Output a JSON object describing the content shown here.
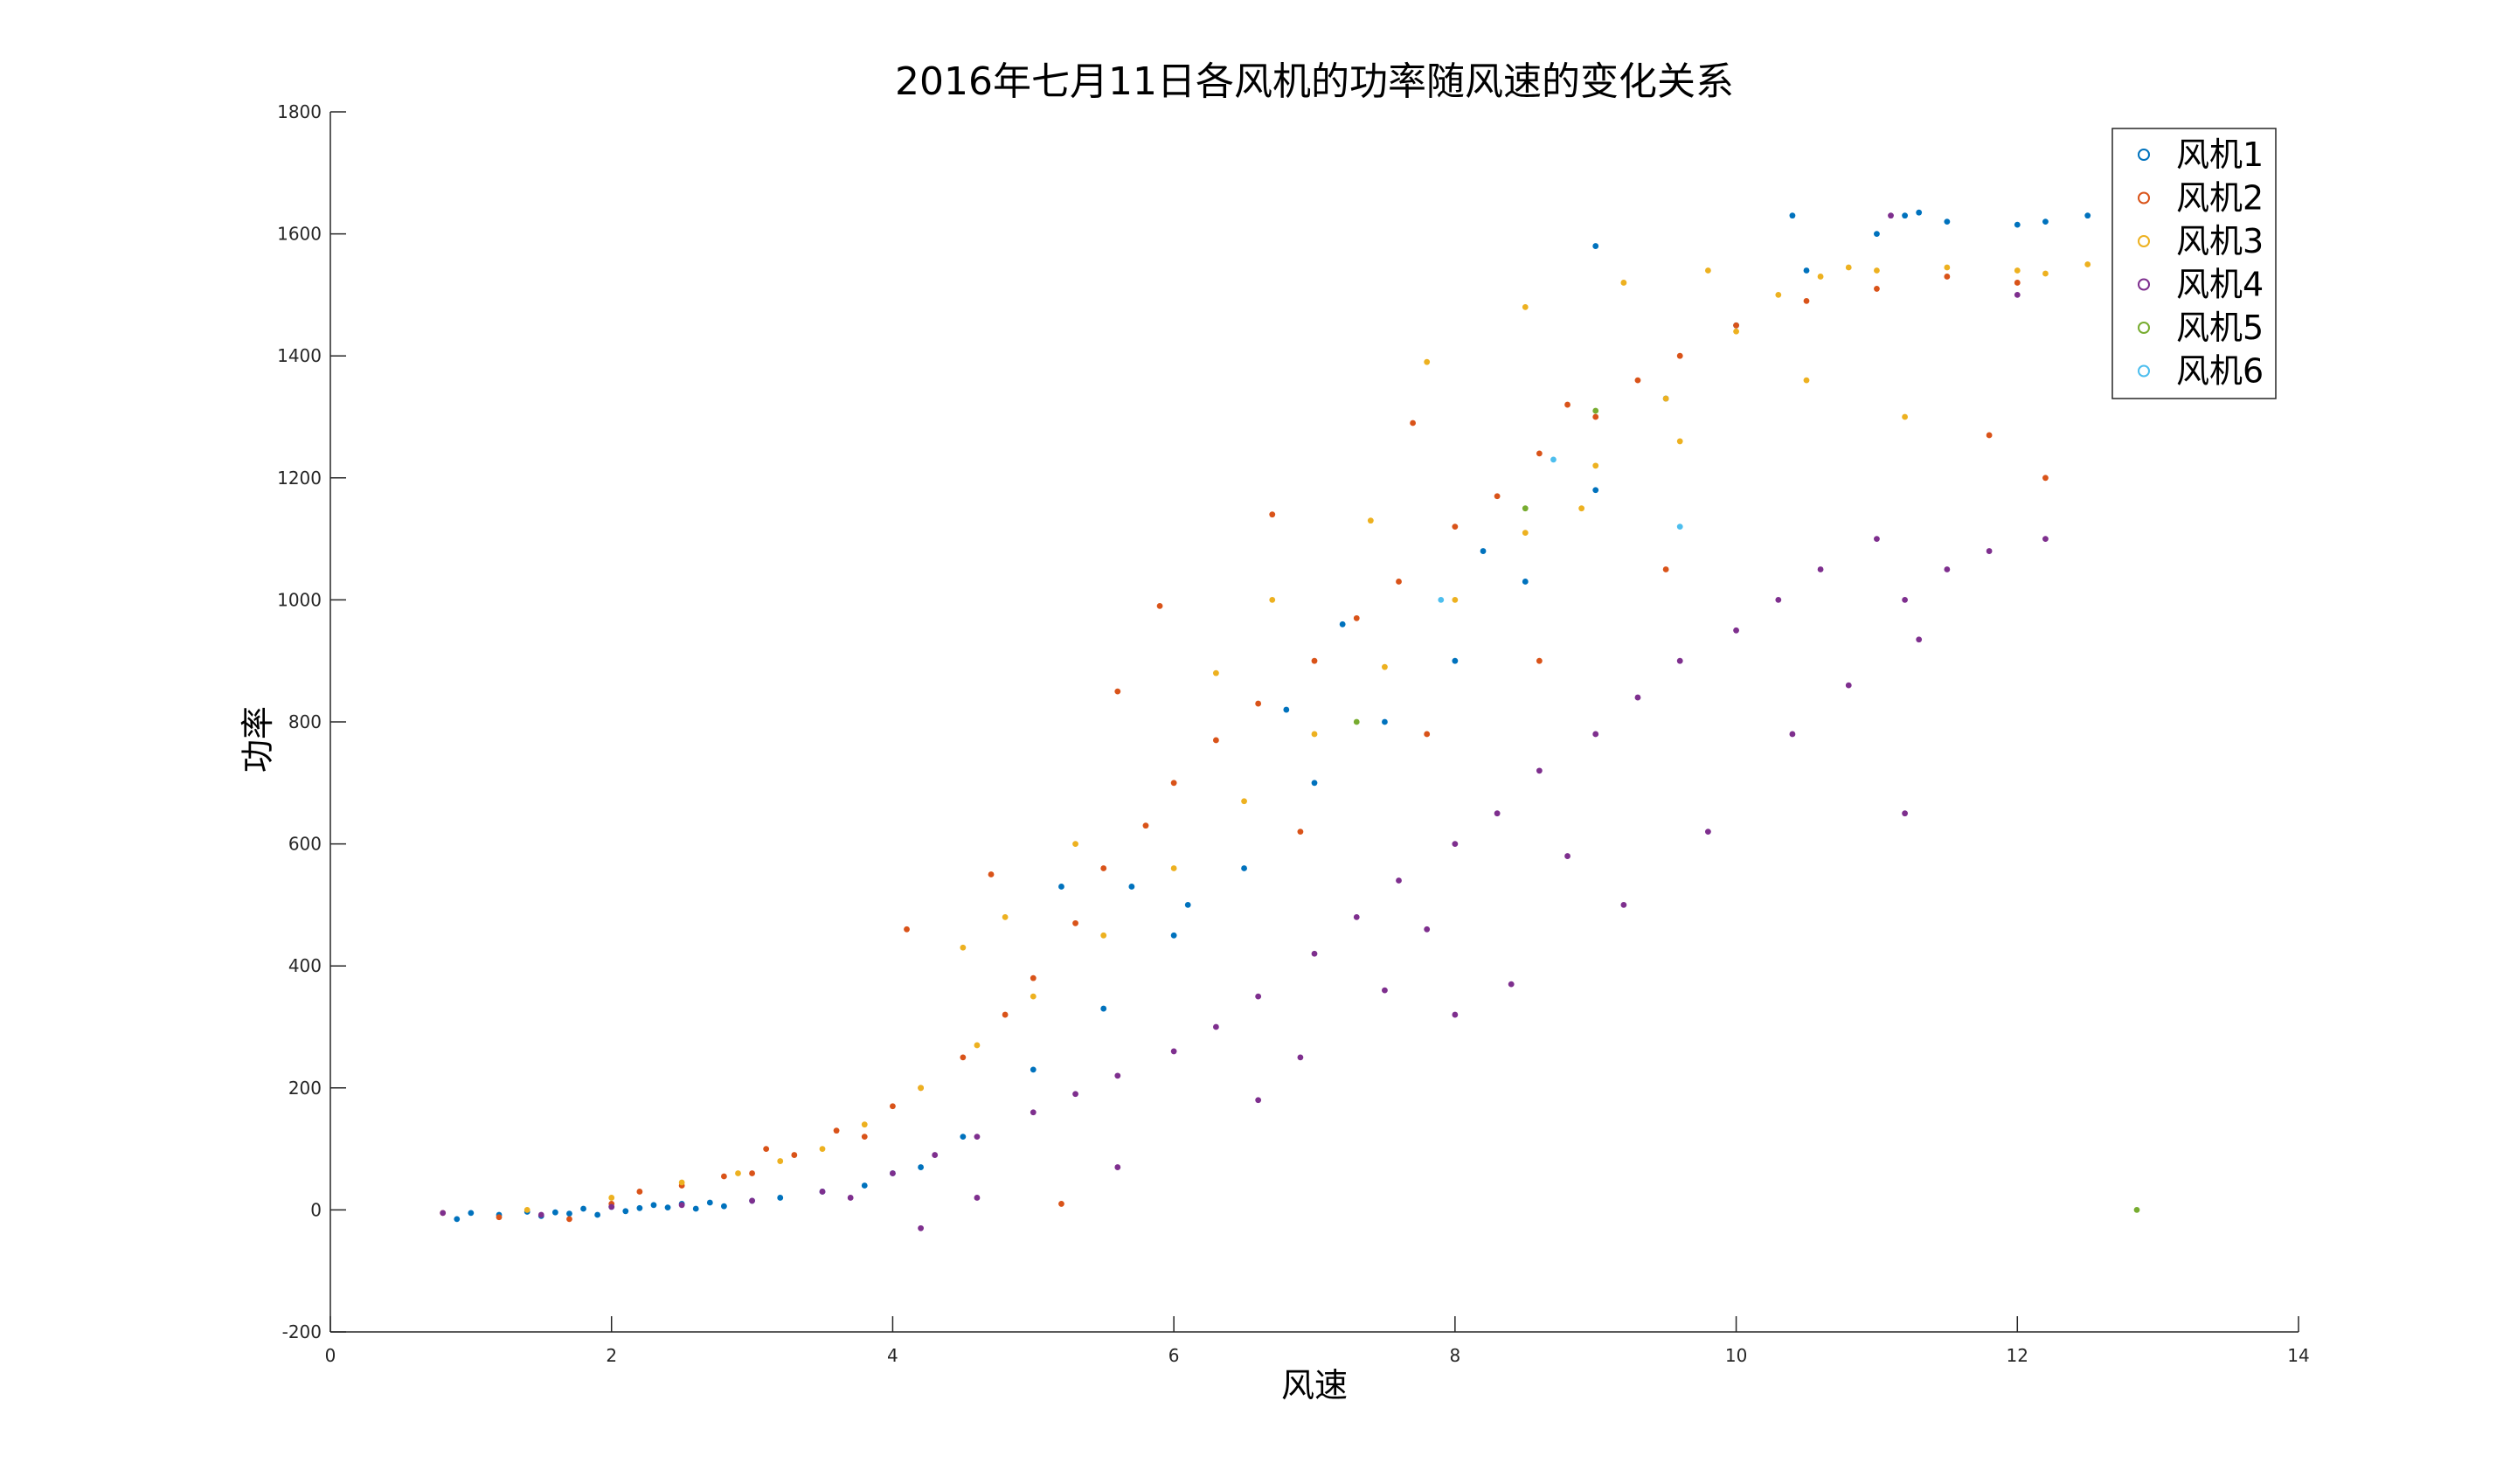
{
  "chart_data": {
    "type": "scatter",
    "title": "2016年七月11日各风机的功率随风速的变化关系",
    "xlabel": "风速",
    "ylabel": "功率",
    "xlim": [
      0,
      14
    ],
    "ylim": [
      -200,
      1800
    ],
    "xticks": [
      0,
      2,
      4,
      6,
      8,
      10,
      12,
      14
    ],
    "yticks": [
      -200,
      0,
      200,
      400,
      600,
      800,
      1000,
      1200,
      1400,
      1600,
      1800
    ],
    "grid": false,
    "legend_position": "top-right",
    "series": [
      {
        "name": "风机1",
        "color": "#0072BD",
        "points": [
          [
            0.9,
            -15
          ],
          [
            1.0,
            -5
          ],
          [
            1.2,
            -8
          ],
          [
            1.4,
            -3
          ],
          [
            1.5,
            -10
          ],
          [
            1.6,
            -4
          ],
          [
            1.7,
            -6
          ],
          [
            1.8,
            2
          ],
          [
            1.9,
            -8
          ],
          [
            2.0,
            5
          ],
          [
            2.1,
            -2
          ],
          [
            2.2,
            3
          ],
          [
            2.3,
            8
          ],
          [
            2.4,
            4
          ],
          [
            2.5,
            10
          ],
          [
            2.6,
            2
          ],
          [
            2.7,
            12
          ],
          [
            2.8,
            6
          ],
          [
            3.0,
            15
          ],
          [
            3.2,
            20
          ],
          [
            3.5,
            30
          ],
          [
            4.0,
            60
          ],
          [
            4.5,
            120
          ],
          [
            5.0,
            230
          ],
          [
            5.5,
            330
          ],
          [
            6.0,
            450
          ],
          [
            6.5,
            560
          ],
          [
            7.0,
            700
          ],
          [
            7.5,
            800
          ],
          [
            8.0,
            900
          ],
          [
            8.5,
            1030
          ],
          [
            9.0,
            1180
          ],
          [
            9.5,
            1330
          ],
          [
            10.0,
            1450
          ],
          [
            10.5,
            1540
          ],
          [
            11.0,
            1600
          ],
          [
            11.2,
            1630
          ],
          [
            11.5,
            1620
          ],
          [
            12.0,
            1615
          ],
          [
            12.5,
            1630
          ],
          [
            9.0,
            1580
          ],
          [
            10.4,
            1630
          ],
          [
            11.3,
            1635
          ],
          [
            12.2,
            1620
          ],
          [
            13.0,
            1610
          ],
          [
            8.2,
            1080
          ],
          [
            7.2,
            960
          ],
          [
            6.8,
            820
          ],
          [
            5.2,
            530
          ],
          [
            5.7,
            530
          ],
          [
            6.1,
            500
          ],
          [
            3.8,
            40
          ],
          [
            4.2,
            70
          ]
        ]
      },
      {
        "name": "风机2",
        "color": "#D95319",
        "points": [
          [
            0.8,
            -5
          ],
          [
            1.2,
            -12
          ],
          [
            1.7,
            -15
          ],
          [
            2.0,
            10
          ],
          [
            2.2,
            30
          ],
          [
            2.5,
            40
          ],
          [
            3.0,
            60
          ],
          [
            3.3,
            90
          ],
          [
            3.6,
            130
          ],
          [
            4.0,
            170
          ],
          [
            4.2,
            200
          ],
          [
            4.5,
            250
          ],
          [
            4.8,
            320
          ],
          [
            5.0,
            380
          ],
          [
            5.3,
            470
          ],
          [
            5.5,
            560
          ],
          [
            5.8,
            630
          ],
          [
            6.0,
            700
          ],
          [
            6.3,
            770
          ],
          [
            6.6,
            830
          ],
          [
            7.0,
            900
          ],
          [
            7.3,
            970
          ],
          [
            7.6,
            1030
          ],
          [
            8.0,
            1120
          ],
          [
            8.3,
            1170
          ],
          [
            8.6,
            1240
          ],
          [
            9.0,
            1300
          ],
          [
            9.3,
            1360
          ],
          [
            9.6,
            1400
          ],
          [
            10.0,
            1450
          ],
          [
            10.5,
            1490
          ],
          [
            11.0,
            1510
          ],
          [
            11.5,
            1530
          ],
          [
            12.0,
            1520
          ],
          [
            12.2,
            1200
          ],
          [
            11.8,
            1270
          ],
          [
            12.8,
            1500
          ],
          [
            5.6,
            850
          ],
          [
            5.9,
            990
          ],
          [
            4.7,
            550
          ],
          [
            4.1,
            460
          ],
          [
            6.7,
            1140
          ],
          [
            7.7,
            1290
          ],
          [
            8.8,
            1320
          ],
          [
            3.1,
            100
          ],
          [
            2.8,
            55
          ],
          [
            5.2,
            10
          ],
          [
            3.8,
            120
          ],
          [
            6.9,
            620
          ],
          [
            7.8,
            780
          ],
          [
            8.6,
            900
          ],
          [
            9.5,
            1050
          ]
        ]
      },
      {
        "name": "风机3",
        "color": "#EDB120",
        "points": [
          [
            1.4,
            0
          ],
          [
            2.0,
            20
          ],
          [
            2.5,
            45
          ],
          [
            2.9,
            60
          ],
          [
            3.2,
            80
          ],
          [
            3.5,
            100
          ],
          [
            3.8,
            140
          ],
          [
            4.2,
            200
          ],
          [
            4.6,
            270
          ],
          [
            5.0,
            350
          ],
          [
            5.5,
            450
          ],
          [
            6.0,
            560
          ],
          [
            6.5,
            670
          ],
          [
            7.0,
            780
          ],
          [
            7.5,
            890
          ],
          [
            8.0,
            1000
          ],
          [
            8.5,
            1110
          ],
          [
            9.0,
            1220
          ],
          [
            9.5,
            1330
          ],
          [
            10.0,
            1440
          ],
          [
            10.3,
            1500
          ],
          [
            10.6,
            1530
          ],
          [
            11.0,
            1540
          ],
          [
            11.5,
            1545
          ],
          [
            12.0,
            1540
          ],
          [
            12.5,
            1550
          ],
          [
            13.0,
            1550
          ],
          [
            13.3,
            1545
          ],
          [
            9.2,
            1520
          ],
          [
            9.8,
            1540
          ],
          [
            10.8,
            1545
          ],
          [
            12.2,
            1535
          ],
          [
            7.8,
            1390
          ],
          [
            8.5,
            1480
          ],
          [
            6.7,
            1000
          ],
          [
            5.3,
            600
          ],
          [
            4.5,
            430
          ],
          [
            8.9,
            1150
          ],
          [
            9.6,
            1260
          ],
          [
            10.5,
            1360
          ],
          [
            11.2,
            1300
          ],
          [
            7.4,
            1130
          ],
          [
            6.3,
            880
          ],
          [
            4.8,
            480
          ]
        ]
      },
      {
        "name": "风机4",
        "color": "#7E2F8E",
        "points": [
          [
            0.8,
            -5
          ],
          [
            1.5,
            -8
          ],
          [
            2.0,
            5
          ],
          [
            2.5,
            8
          ],
          [
            3.0,
            15
          ],
          [
            3.5,
            30
          ],
          [
            4.0,
            60
          ],
          [
            4.3,
            90
          ],
          [
            4.6,
            120
          ],
          [
            5.0,
            160
          ],
          [
            5.3,
            190
          ],
          [
            5.6,
            220
          ],
          [
            6.0,
            260
          ],
          [
            6.3,
            300
          ],
          [
            6.6,
            350
          ],
          [
            7.0,
            420
          ],
          [
            7.3,
            480
          ],
          [
            7.6,
            540
          ],
          [
            8.0,
            600
          ],
          [
            8.3,
            650
          ],
          [
            8.6,
            720
          ],
          [
            9.0,
            780
          ],
          [
            9.3,
            840
          ],
          [
            9.6,
            900
          ],
          [
            10.0,
            950
          ],
          [
            10.3,
            1000
          ],
          [
            10.6,
            1050
          ],
          [
            11.0,
            1100
          ],
          [
            11.2,
            1000
          ],
          [
            11.5,
            1050
          ],
          [
            11.8,
            1080
          ],
          [
            12.2,
            1100
          ],
          [
            9.2,
            500
          ],
          [
            8.8,
            580
          ],
          [
            8.4,
            370
          ],
          [
            8.0,
            320
          ],
          [
            9.8,
            620
          ],
          [
            10.4,
            780
          ],
          [
            11.2,
            650
          ],
          [
            12.0,
            1500
          ],
          [
            6.6,
            180
          ],
          [
            5.6,
            70
          ],
          [
            4.2,
            -30
          ],
          [
            4.6,
            20
          ],
          [
            7.8,
            460
          ],
          [
            7.5,
            360
          ],
          [
            6.9,
            250
          ],
          [
            10.8,
            860
          ],
          [
            11.3,
            935
          ],
          [
            3.7,
            20
          ],
          [
            11.1,
            1630
          ]
        ]
      },
      {
        "name": "风机5",
        "color": "#77AC30",
        "points": [
          [
            12.85,
            0
          ],
          [
            9.0,
            1310
          ],
          [
            8.5,
            1150
          ],
          [
            7.3,
            800
          ]
        ]
      },
      {
        "name": "风机6",
        "color": "#4DBEEE",
        "points": [
          [
            9.6,
            1120
          ],
          [
            7.9,
            1000
          ],
          [
            8.7,
            1230
          ]
        ]
      }
    ]
  }
}
